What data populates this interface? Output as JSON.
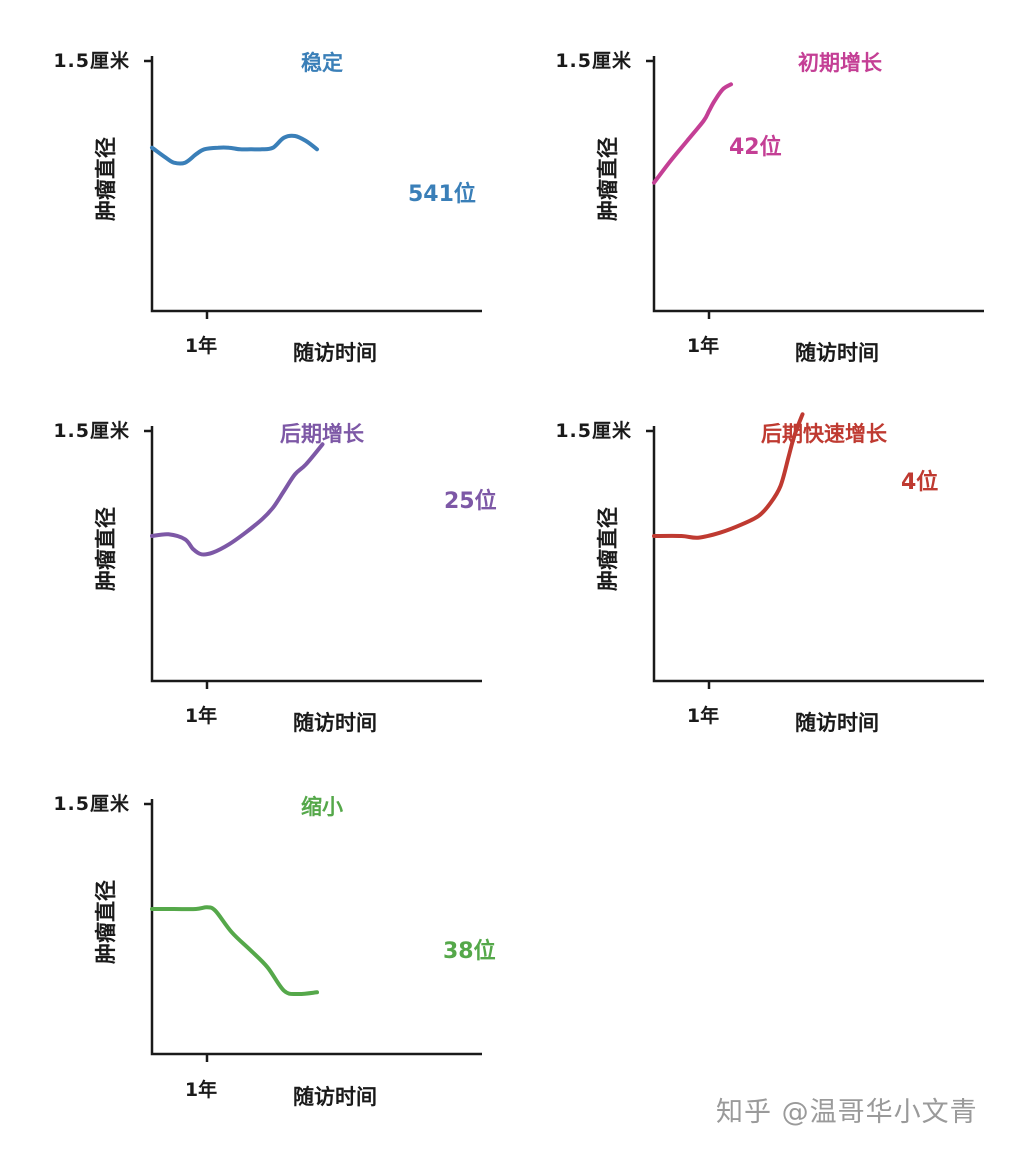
{
  "chart_data": [
    {
      "type": "line",
      "title": "稳定",
      "color": "#3a7fb8",
      "ylabel": "肿瘤直径",
      "xlabel": "随访时间",
      "ytick": "1.5厘米",
      "xtick": "1年",
      "annotation": "541位",
      "series": [
        {
          "x": [
            0,
            0.25,
            0.4,
            0.6,
            0.8,
            0.95,
            1.2,
            1.4,
            1.6,
            1.8,
            2.0,
            2.2,
            2.4,
            2.6,
            2.8,
            3.0
          ],
          "y": [
            0.98,
            0.92,
            0.89,
            0.89,
            0.94,
            0.97,
            0.98,
            0.98,
            0.97,
            0.97,
            0.97,
            0.98,
            1.04,
            1.05,
            1.02,
            0.97
          ]
        }
      ]
    },
    {
      "type": "line",
      "title": "初期增长",
      "color": "#c43f95",
      "ylabel": "肿瘤直径",
      "xlabel": "随访时间",
      "ytick": "1.5厘米",
      "xtick": "1年",
      "annotation": "42位",
      "series": [
        {
          "x": [
            0,
            0.3,
            0.6,
            0.9,
            1.0,
            1.1,
            1.25,
            1.4
          ],
          "y": [
            0.77,
            0.9,
            1.02,
            1.14,
            1.2,
            1.26,
            1.33,
            1.36
          ]
        }
      ]
    },
    {
      "type": "line",
      "title": "后期增长",
      "color": "#7d58a6",
      "ylabel": "肿瘤直径",
      "xlabel": "随访时间",
      "ytick": "1.5厘米",
      "xtick": "1年",
      "annotation": "25位",
      "series": [
        {
          "x": [
            0,
            0.3,
            0.6,
            0.75,
            0.9,
            1.1,
            1.4,
            1.7,
            2.0,
            2.2,
            2.4,
            2.6,
            2.8,
            3.1
          ],
          "y": [
            0.87,
            0.88,
            0.85,
            0.79,
            0.76,
            0.77,
            0.82,
            0.89,
            0.97,
            1.04,
            1.14,
            1.24,
            1.3,
            1.42
          ]
        }
      ]
    },
    {
      "type": "line",
      "title": "后期快速增长",
      "color": "#bf3a31",
      "ylabel": "肿瘤直径",
      "xlabel": "随访时间",
      "ytick": "1.5厘米",
      "xtick": "1年",
      "annotation": "4位",
      "series": [
        {
          "x": [
            0,
            0.5,
            0.8,
            1.2,
            1.6,
            1.9,
            2.1,
            2.3,
            2.45,
            2.55,
            2.7
          ],
          "y": [
            0.87,
            0.87,
            0.86,
            0.89,
            0.94,
            0.99,
            1.06,
            1.17,
            1.35,
            1.47,
            1.6
          ]
        }
      ]
    },
    {
      "type": "line",
      "title": "缩小",
      "color": "#55a84a",
      "ylabel": "肿瘤直径",
      "xlabel": "随访时间",
      "ytick": "1.5厘米",
      "xtick": "1年",
      "annotation": "38位",
      "series": [
        {
          "x": [
            0,
            0.4,
            0.8,
            1.0,
            1.15,
            1.45,
            1.8,
            2.1,
            2.4,
            2.65,
            3.0
          ],
          "y": [
            0.87,
            0.87,
            0.87,
            0.88,
            0.86,
            0.73,
            0.62,
            0.52,
            0.38,
            0.36,
            0.37
          ]
        }
      ]
    }
  ],
  "watermark": "知乎 @温哥华小文青"
}
